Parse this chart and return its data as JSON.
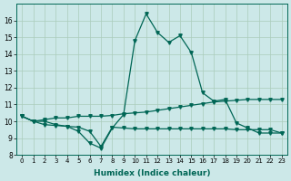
{
  "title": "",
  "xlabel": "Humidex (Indice chaleur)",
  "bg_color": "#cce8e8",
  "grid_color": "#aaccbb",
  "line_color": "#006655",
  "xlim": [
    -0.5,
    23.5
  ],
  "ylim": [
    8,
    17
  ],
  "yticks": [
    8,
    9,
    10,
    11,
    12,
    13,
    14,
    15,
    16
  ],
  "xticks": [
    0,
    1,
    2,
    3,
    4,
    5,
    6,
    7,
    8,
    9,
    10,
    11,
    12,
    13,
    14,
    15,
    16,
    17,
    18,
    19,
    20,
    21,
    22,
    23
  ],
  "line1_x": [
    0,
    1,
    2,
    3,
    4,
    5,
    6,
    7,
    8,
    9,
    10,
    11,
    12,
    13,
    14,
    15,
    16,
    17,
    18,
    19,
    20,
    21,
    22,
    23
  ],
  "line1_y": [
    10.3,
    10.0,
    10.0,
    9.8,
    9.7,
    9.4,
    8.7,
    8.4,
    9.6,
    10.4,
    14.8,
    16.4,
    15.3,
    14.7,
    15.1,
    14.1,
    11.7,
    11.2,
    11.3,
    9.9,
    9.6,
    9.3,
    9.3,
    9.3
  ],
  "line2_x": [
    0,
    1,
    2,
    3,
    4,
    5,
    6,
    7,
    8,
    9,
    10,
    11,
    12,
    13,
    14,
    15,
    16,
    17,
    18,
    19,
    20,
    21,
    22,
    23
  ],
  "line2_y": [
    10.3,
    10.0,
    10.1,
    10.2,
    10.2,
    10.3,
    10.3,
    10.3,
    10.35,
    10.45,
    10.5,
    10.55,
    10.65,
    10.75,
    10.85,
    10.95,
    11.05,
    11.15,
    11.2,
    11.25,
    11.3,
    11.3,
    11.3,
    11.3
  ],
  "line3_x": [
    0,
    1,
    2,
    3,
    4,
    5,
    6,
    7,
    8,
    9,
    10,
    11,
    12,
    13,
    14,
    15,
    16,
    17,
    18,
    19,
    20,
    21,
    22,
    23
  ],
  "line3_y": [
    10.3,
    10.0,
    9.8,
    9.75,
    9.7,
    9.65,
    9.4,
    8.5,
    9.65,
    9.6,
    9.55,
    9.55,
    9.55,
    9.55,
    9.55,
    9.55,
    9.55,
    9.55,
    9.55,
    9.5,
    9.5,
    9.5,
    9.5,
    9.3
  ]
}
